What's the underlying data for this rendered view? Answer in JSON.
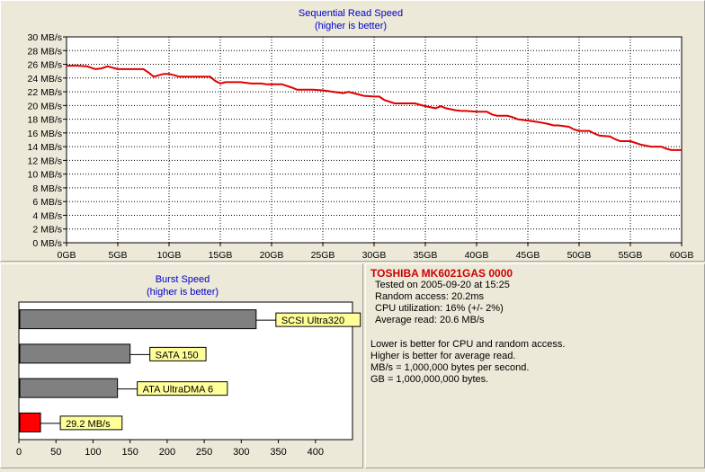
{
  "chart_data": [
    {
      "type": "line",
      "title": "Sequential Read Speed",
      "subtitle": "(higher is better)",
      "xlabel": "",
      "ylabel": "",
      "x_unit": "GB",
      "y_unit": "MB/s",
      "xlim": [
        0,
        60
      ],
      "ylim": [
        0,
        30
      ],
      "x_ticks": [
        "0GB",
        "5GB",
        "10GB",
        "15GB",
        "20GB",
        "25GB",
        "30GB",
        "35GB",
        "40GB",
        "45GB",
        "50GB",
        "55GB",
        "60GB"
      ],
      "y_ticks": [
        "0 MB/s",
        "2 MB/s",
        "4 MB/s",
        "6 MB/s",
        "8 MB/s",
        "10 MB/s",
        "12 MB/s",
        "14 MB/s",
        "16 MB/s",
        "18 MB/s",
        "20 MB/s",
        "22 MB/s",
        "24 MB/s",
        "26 MB/s",
        "28 MB/s",
        "30 MB/s"
      ],
      "grid": true,
      "line_color": "#e00000",
      "x": [
        0,
        1,
        2,
        2.8,
        3.4,
        4,
        4.5,
        5,
        6,
        7,
        7.5,
        8,
        8.5,
        9,
        9.5,
        10,
        10.5,
        11,
        12,
        13,
        14,
        14.5,
        15,
        15.5,
        16,
        17,
        18,
        19,
        19.5,
        20,
        21,
        22,
        22.5,
        23,
        24,
        25,
        25.5,
        26,
        27,
        27.5,
        28,
        28.5,
        29,
        30,
        30.5,
        31,
        32,
        33,
        34,
        34.5,
        35,
        36,
        36.5,
        37,
        38,
        38.5,
        39,
        40,
        41,
        41.5,
        42,
        43,
        43.5,
        44,
        45,
        46,
        47,
        47.5,
        48,
        49,
        49.5,
        50,
        51,
        51.5,
        52,
        53,
        53.5,
        54,
        55,
        56,
        57,
        58,
        58.5,
        59,
        60
      ],
      "y": [
        25.8,
        25.8,
        25.7,
        25.3,
        25.4,
        25.7,
        25.5,
        25.3,
        25.3,
        25.3,
        25.3,
        24.8,
        24.2,
        24.4,
        24.6,
        24.6,
        24.4,
        24.2,
        24.2,
        24.2,
        24.2,
        23.6,
        23.2,
        23.4,
        23.4,
        23.4,
        23.2,
        23.2,
        23.1,
        23.1,
        23.1,
        22.6,
        22.3,
        22.3,
        22.3,
        22.2,
        22.1,
        22.0,
        21.8,
        22.0,
        21.8,
        21.6,
        21.4,
        21.3,
        21.3,
        20.8,
        20.3,
        20.3,
        20.3,
        20.1,
        19.9,
        19.6,
        19.9,
        19.6,
        19.3,
        19.2,
        19.2,
        19.1,
        19.1,
        18.7,
        18.5,
        18.5,
        18.3,
        18.0,
        17.8,
        17.6,
        17.3,
        17.1,
        17.1,
        16.9,
        16.5,
        16.3,
        16.3,
        15.9,
        15.6,
        15.5,
        15.1,
        14.8,
        14.8,
        14.3,
        14.0,
        14.0,
        13.7,
        13.5,
        13.5
      ]
    },
    {
      "type": "bar",
      "orientation": "horizontal",
      "title": "Burst Speed",
      "subtitle": "(higher is better)",
      "xlim": [
        0,
        450
      ],
      "x_ticks": [
        "0",
        "50",
        "100",
        "150",
        "200",
        "250",
        "300",
        "350",
        "400"
      ],
      "categories": [
        "SCSI Ultra320",
        "SATA 150",
        "ATA UltraDMA 6",
        "29.2 MB/s"
      ],
      "values": [
        320,
        150,
        133,
        29.2
      ],
      "colors": [
        "#808080",
        "#808080",
        "#808080",
        "#ff0000"
      ],
      "label_bg": "#ffff99"
    }
  ],
  "info": {
    "title": "TOSHIBA MK6021GAS 0000",
    "lines": [
      "Tested on 2005-09-20 at 15:25",
      "Random access: 20.2ms",
      "CPU utilization: 16% (+/- 2%)",
      "Average read: 20.6 MB/s"
    ],
    "notes": [
      "Lower is better for CPU and random access.",
      "Higher is better for average read.",
      "MB/s = 1,000,000 bytes per second.",
      "GB = 1,000,000,000 bytes."
    ]
  }
}
